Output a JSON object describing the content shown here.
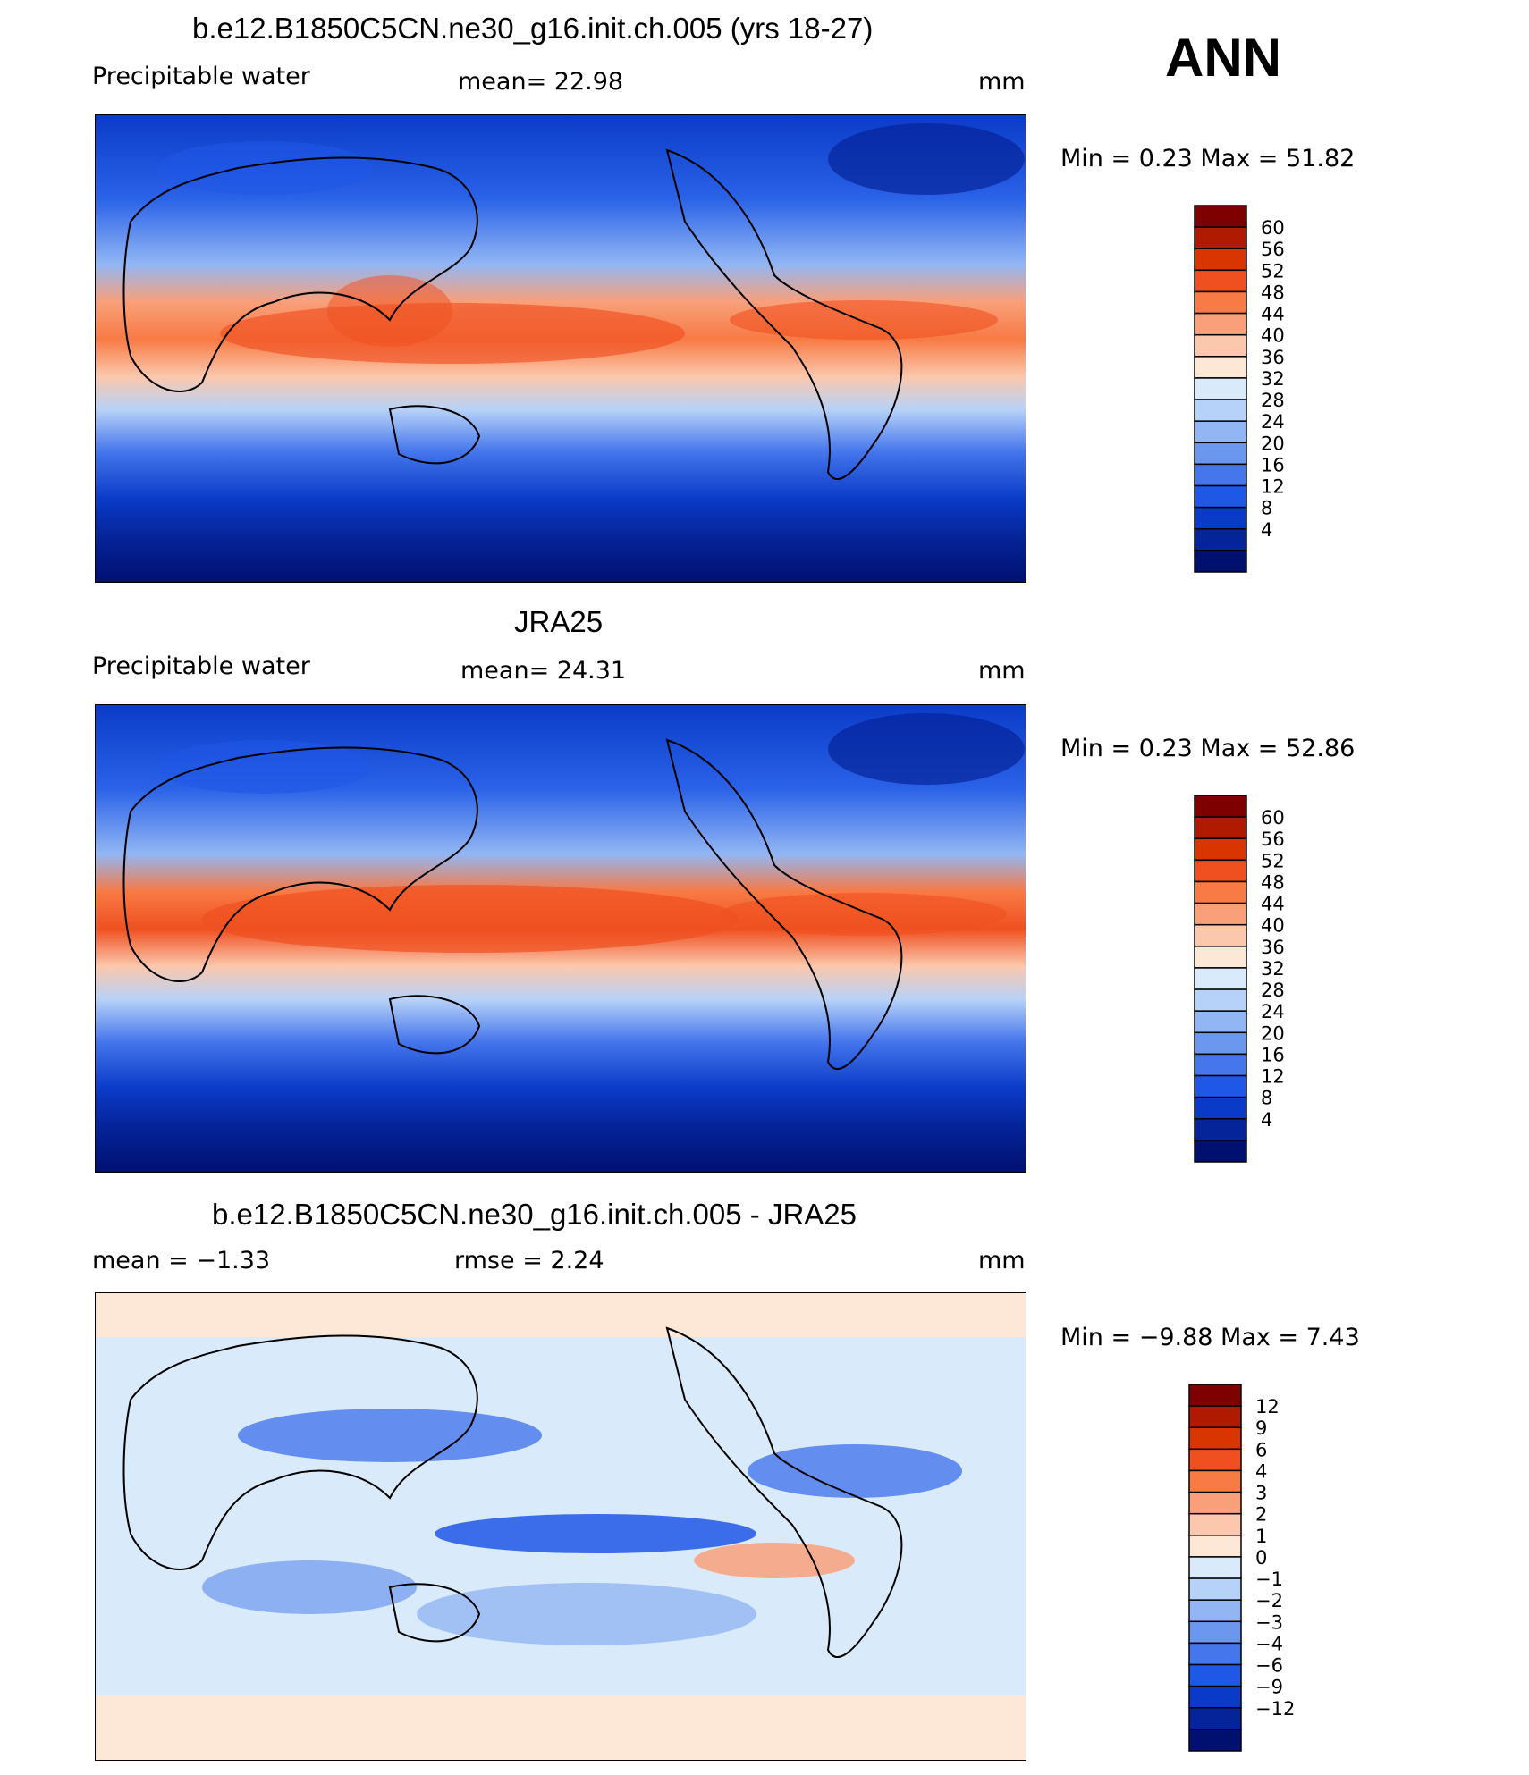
{
  "season": "ANN",
  "panels": [
    {
      "title": "b.e12.B1850C5CN.ne30_g16.init.ch.005 (yrs 18-27)",
      "left_label": "Precipitable  water",
      "center_label": "mean=   22.98",
      "right_label": "mm",
      "minmax": "Min  =     0.23  Max  =    51.82",
      "colorbar": {
        "labels": [
          "60",
          "56",
          "52",
          "48",
          "44",
          "40",
          "36",
          "32",
          "28",
          "24",
          "20",
          "16",
          "12",
          "8",
          "4"
        ],
        "colors": [
          "#7f0000",
          "#b01a00",
          "#d93500",
          "#f05020",
          "#f87a45",
          "#f9a07a",
          "#fbc8ad",
          "#fde8d8",
          "#d9eafb",
          "#b7d2f8",
          "#92b6f4",
          "#6c97ef",
          "#4576ec",
          "#1f57e6",
          "#0a3bc8",
          "#05249a",
          "#001070"
        ]
      }
    },
    {
      "title": "JRA25",
      "left_label": "Precipitable  water",
      "center_label": "mean=   24.31",
      "right_label": "mm",
      "minmax": "Min  =     0.23  Max  =    52.86",
      "colorbar": {
        "labels": [
          "60",
          "56",
          "52",
          "48",
          "44",
          "40",
          "36",
          "32",
          "28",
          "24",
          "20",
          "16",
          "12",
          "8",
          "4"
        ],
        "colors": [
          "#7f0000",
          "#b01a00",
          "#d93500",
          "#f05020",
          "#f87a45",
          "#f9a07a",
          "#fbc8ad",
          "#fde8d8",
          "#d9eafb",
          "#b7d2f8",
          "#92b6f4",
          "#6c97ef",
          "#4576ec",
          "#1f57e6",
          "#0a3bc8",
          "#05249a",
          "#001070"
        ]
      }
    },
    {
      "title": "b.e12.B1850C5CN.ne30_g16.init.ch.005 - JRA25",
      "left_label": "mean  =    −1.33",
      "center_label": "rmse  =     2.24",
      "right_label": "mm",
      "minmax": "Min  =    −9.88  Max  =     7.43",
      "colorbar": {
        "labels": [
          "12",
          "9",
          "6",
          "4",
          "3",
          "2",
          "1",
          "0",
          "−1",
          "−2",
          "−3",
          "−4",
          "−6",
          "−9",
          "−12"
        ],
        "colors": [
          "#7f0000",
          "#b01a00",
          "#d93500",
          "#f05020",
          "#f87a45",
          "#f9a07a",
          "#fbc8ad",
          "#fde8d8",
          "#d9eafb",
          "#b7d2f8",
          "#92b6f4",
          "#6c97ef",
          "#4576ec",
          "#1f57e6",
          "#0a3bc8",
          "#05249a",
          "#001070"
        ]
      }
    }
  ],
  "chart_data": [
    {
      "type": "heatmap",
      "title": "b.e12.B1850C5CN.ne30_g16.init.ch.005 (yrs 18-27)",
      "variable": "Precipitable  water",
      "units": "mm",
      "mean": 22.98,
      "min": 0.23,
      "max": 51.82,
      "levels": [
        4,
        8,
        12,
        16,
        20,
        24,
        28,
        32,
        36,
        40,
        44,
        48,
        52,
        56,
        60
      ]
    },
    {
      "type": "heatmap",
      "title": "JRA25",
      "variable": "Precipitable  water",
      "units": "mm",
      "mean": 24.31,
      "min": 0.23,
      "max": 52.86,
      "levels": [
        4,
        8,
        12,
        16,
        20,
        24,
        28,
        32,
        36,
        40,
        44,
        48,
        52,
        56,
        60
      ]
    },
    {
      "type": "heatmap",
      "title": "b.e12.B1850C5CN.ne30_g16.init.ch.005 - JRA25",
      "units": "mm",
      "mean": -1.33,
      "rmse": 2.24,
      "min": -9.88,
      "max": 7.43,
      "levels": [
        -12,
        -9,
        -6,
        -4,
        -3,
        -2,
        -1,
        0,
        1,
        2,
        3,
        4,
        6,
        9,
        12
      ]
    }
  ]
}
